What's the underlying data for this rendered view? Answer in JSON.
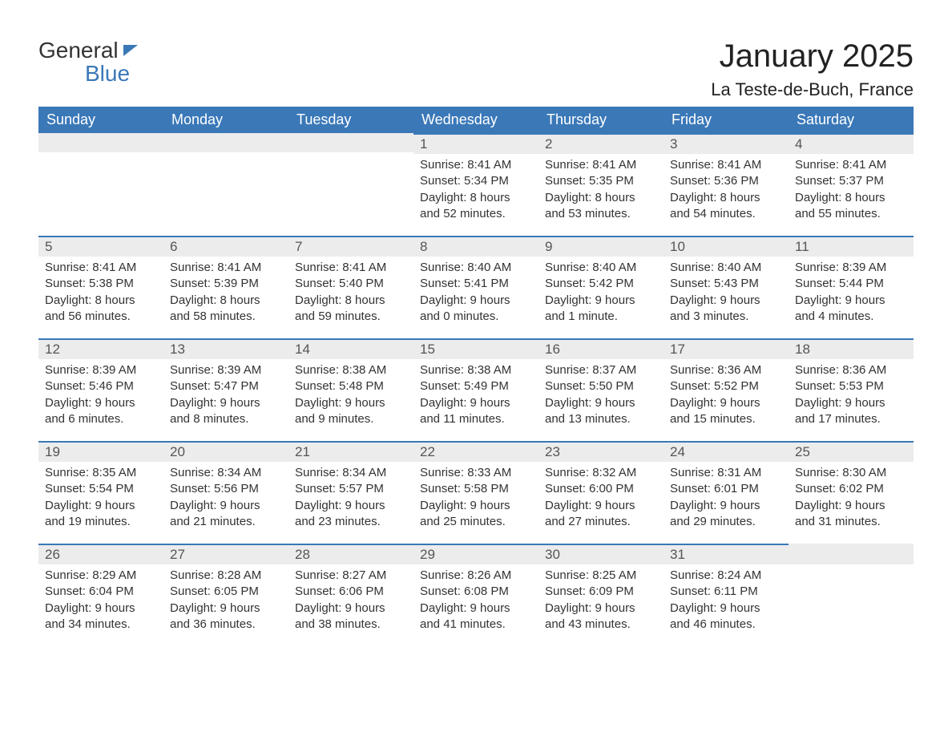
{
  "logo": {
    "text1": "General",
    "text2": "Blue"
  },
  "title": "January 2025",
  "location": "La Teste-de-Buch, France",
  "colors": {
    "brand": "#3a78b8",
    "row_bg": "#ececec",
    "text": "#333333",
    "page_bg": "#ffffff"
  },
  "weekday_labels": [
    "Sunday",
    "Monday",
    "Tuesday",
    "Wednesday",
    "Thursday",
    "Friday",
    "Saturday"
  ],
  "labels": {
    "sunrise": "Sunrise:",
    "sunset": "Sunset:",
    "daylight": "Daylight:"
  },
  "weeks": [
    [
      null,
      null,
      null,
      {
        "n": "1",
        "sunrise": "8:41 AM",
        "sunset": "5:34 PM",
        "daylight": "8 hours and 52 minutes."
      },
      {
        "n": "2",
        "sunrise": "8:41 AM",
        "sunset": "5:35 PM",
        "daylight": "8 hours and 53 minutes."
      },
      {
        "n": "3",
        "sunrise": "8:41 AM",
        "sunset": "5:36 PM",
        "daylight": "8 hours and 54 minutes."
      },
      {
        "n": "4",
        "sunrise": "8:41 AM",
        "sunset": "5:37 PM",
        "daylight": "8 hours and 55 minutes."
      }
    ],
    [
      {
        "n": "5",
        "sunrise": "8:41 AM",
        "sunset": "5:38 PM",
        "daylight": "8 hours and 56 minutes."
      },
      {
        "n": "6",
        "sunrise": "8:41 AM",
        "sunset": "5:39 PM",
        "daylight": "8 hours and 58 minutes."
      },
      {
        "n": "7",
        "sunrise": "8:41 AM",
        "sunset": "5:40 PM",
        "daylight": "8 hours and 59 minutes."
      },
      {
        "n": "8",
        "sunrise": "8:40 AM",
        "sunset": "5:41 PM",
        "daylight": "9 hours and 0 minutes."
      },
      {
        "n": "9",
        "sunrise": "8:40 AM",
        "sunset": "5:42 PM",
        "daylight": "9 hours and 1 minute."
      },
      {
        "n": "10",
        "sunrise": "8:40 AM",
        "sunset": "5:43 PM",
        "daylight": "9 hours and 3 minutes."
      },
      {
        "n": "11",
        "sunrise": "8:39 AM",
        "sunset": "5:44 PM",
        "daylight": "9 hours and 4 minutes."
      }
    ],
    [
      {
        "n": "12",
        "sunrise": "8:39 AM",
        "sunset": "5:46 PM",
        "daylight": "9 hours and 6 minutes."
      },
      {
        "n": "13",
        "sunrise": "8:39 AM",
        "sunset": "5:47 PM",
        "daylight": "9 hours and 8 minutes."
      },
      {
        "n": "14",
        "sunrise": "8:38 AM",
        "sunset": "5:48 PM",
        "daylight": "9 hours and 9 minutes."
      },
      {
        "n": "15",
        "sunrise": "8:38 AM",
        "sunset": "5:49 PM",
        "daylight": "9 hours and 11 minutes."
      },
      {
        "n": "16",
        "sunrise": "8:37 AM",
        "sunset": "5:50 PM",
        "daylight": "9 hours and 13 minutes."
      },
      {
        "n": "17",
        "sunrise": "8:36 AM",
        "sunset": "5:52 PM",
        "daylight": "9 hours and 15 minutes."
      },
      {
        "n": "18",
        "sunrise": "8:36 AM",
        "sunset": "5:53 PM",
        "daylight": "9 hours and 17 minutes."
      }
    ],
    [
      {
        "n": "19",
        "sunrise": "8:35 AM",
        "sunset": "5:54 PM",
        "daylight": "9 hours and 19 minutes."
      },
      {
        "n": "20",
        "sunrise": "8:34 AM",
        "sunset": "5:56 PM",
        "daylight": "9 hours and 21 minutes."
      },
      {
        "n": "21",
        "sunrise": "8:34 AM",
        "sunset": "5:57 PM",
        "daylight": "9 hours and 23 minutes."
      },
      {
        "n": "22",
        "sunrise": "8:33 AM",
        "sunset": "5:58 PM",
        "daylight": "9 hours and 25 minutes."
      },
      {
        "n": "23",
        "sunrise": "8:32 AM",
        "sunset": "6:00 PM",
        "daylight": "9 hours and 27 minutes."
      },
      {
        "n": "24",
        "sunrise": "8:31 AM",
        "sunset": "6:01 PM",
        "daylight": "9 hours and 29 minutes."
      },
      {
        "n": "25",
        "sunrise": "8:30 AM",
        "sunset": "6:02 PM",
        "daylight": "9 hours and 31 minutes."
      }
    ],
    [
      {
        "n": "26",
        "sunrise": "8:29 AM",
        "sunset": "6:04 PM",
        "daylight": "9 hours and 34 minutes."
      },
      {
        "n": "27",
        "sunrise": "8:28 AM",
        "sunset": "6:05 PM",
        "daylight": "9 hours and 36 minutes."
      },
      {
        "n": "28",
        "sunrise": "8:27 AM",
        "sunset": "6:06 PM",
        "daylight": "9 hours and 38 minutes."
      },
      {
        "n": "29",
        "sunrise": "8:26 AM",
        "sunset": "6:08 PM",
        "daylight": "9 hours and 41 minutes."
      },
      {
        "n": "30",
        "sunrise": "8:25 AM",
        "sunset": "6:09 PM",
        "daylight": "9 hours and 43 minutes."
      },
      {
        "n": "31",
        "sunrise": "8:24 AM",
        "sunset": "6:11 PM",
        "daylight": "9 hours and 46 minutes."
      },
      null
    ]
  ]
}
